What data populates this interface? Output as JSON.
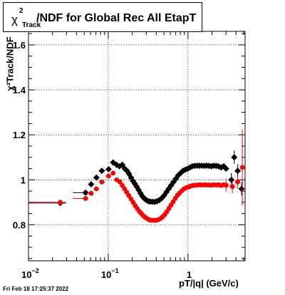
{
  "chart_data": {
    "type": "scatter",
    "title": "/NDF for Global Rec All EtapT",
    "title_symbol": "χ",
    "title_sup": "2",
    "title_sub": "Track",
    "xlabel": "pT/|q| (GeV/c)",
    "ylabel": "χ²Track/NDF",
    "x_scale": "log",
    "xlim": [
      0.01,
      5.2
    ],
    "ylim": [
      0.64,
      1.66
    ],
    "grid": true,
    "x_ticks": [
      {
        "value": 0.01,
        "base": "10",
        "exp": "−2"
      },
      {
        "value": 0.1,
        "base": "10",
        "exp": "−1"
      },
      {
        "value": 1,
        "base": "1",
        "exp": ""
      }
    ],
    "y_ticks": [
      {
        "value": 0.8,
        "label": "0.8"
      },
      {
        "value": 1.0,
        "label": "1"
      },
      {
        "value": 1.2,
        "label": "1.2"
      },
      {
        "value": 1.4,
        "label": "1.4"
      },
      {
        "value": 1.6,
        "label": "1.6"
      }
    ],
    "colors": {
      "black_series": "#000000",
      "red_series": "#ff0000"
    },
    "series": [
      {
        "color": "#000000",
        "marker": "diamond",
        "points": [
          [
            0.025,
            0.897
          ],
          [
            0.052,
            0.943
          ],
          [
            0.061,
            0.98
          ],
          [
            0.071,
            1.01
          ],
          [
            0.083,
            1.04
          ],
          [
            0.101,
            1.047
          ],
          [
            0.115,
            1.077
          ],
          [
            0.127,
            1.067
          ],
          [
            0.138,
            1.06
          ],
          [
            0.15,
            1.067
          ],
          [
            0.161,
            1.05
          ],
          [
            0.172,
            1.04
          ],
          [
            0.182,
            1.027
          ],
          [
            0.193,
            1.01
          ],
          [
            0.204,
            0.995
          ],
          [
            0.215,
            0.983
          ],
          [
            0.227,
            0.97
          ],
          [
            0.24,
            0.955
          ],
          [
            0.254,
            0.94
          ],
          [
            0.268,
            0.927
          ],
          [
            0.283,
            0.917
          ],
          [
            0.3,
            0.91
          ],
          [
            0.318,
            0.905
          ],
          [
            0.338,
            0.903
          ],
          [
            0.36,
            0.902
          ],
          [
            0.384,
            0.902
          ],
          [
            0.41,
            0.905
          ],
          [
            0.438,
            0.91
          ],
          [
            0.468,
            0.918
          ],
          [
            0.5,
            0.93
          ],
          [
            0.535,
            0.945
          ],
          [
            0.573,
            0.96
          ],
          [
            0.614,
            0.975
          ],
          [
            0.658,
            0.99
          ],
          [
            0.705,
            1.005
          ],
          [
            0.755,
            1.02
          ],
          [
            0.808,
            1.03
          ],
          [
            0.865,
            1.04
          ],
          [
            0.926,
            1.045
          ],
          [
            0.99,
            1.05
          ],
          [
            1.06,
            1.055
          ],
          [
            1.13,
            1.06
          ],
          [
            1.21,
            1.062
          ],
          [
            1.3,
            1.063
          ],
          [
            1.39,
            1.063
          ],
          [
            1.49,
            1.063
          ],
          [
            1.6,
            1.062
          ],
          [
            1.71,
            1.063
          ],
          [
            1.83,
            1.062
          ],
          [
            1.96,
            1.06
          ],
          [
            2.1,
            1.063
          ],
          [
            2.25,
            1.062
          ],
          [
            2.41,
            1.06
          ],
          [
            2.6,
            1.055
          ],
          [
            2.8,
            1.06
          ],
          [
            3.0,
            1.05
          ],
          [
            3.5,
            1.0
          ],
          [
            3.8,
            1.1
          ],
          [
            4.2,
            1.04
          ],
          [
            4.7,
            0.96
          ]
        ]
      },
      {
        "color": "#ff0000",
        "marker": "circle",
        "points": [
          [
            0.025,
            0.9
          ],
          [
            0.052,
            0.917
          ],
          [
            0.061,
            0.94
          ],
          [
            0.071,
            0.96
          ],
          [
            0.083,
            0.99
          ],
          [
            0.101,
            1.017
          ],
          [
            0.115,
            1.03
          ],
          [
            0.128,
            1.0
          ],
          [
            0.14,
            0.99
          ],
          [
            0.15,
            0.975
          ],
          [
            0.16,
            0.96
          ],
          [
            0.17,
            0.945
          ],
          [
            0.181,
            0.93
          ],
          [
            0.193,
            0.915
          ],
          [
            0.205,
            0.9
          ],
          [
            0.218,
            0.885
          ],
          [
            0.231,
            0.872
          ],
          [
            0.245,
            0.86
          ],
          [
            0.26,
            0.85
          ],
          [
            0.276,
            0.84
          ],
          [
            0.292,
            0.833
          ],
          [
            0.31,
            0.827
          ],
          [
            0.33,
            0.822
          ],
          [
            0.352,
            0.82
          ],
          [
            0.375,
            0.82
          ],
          [
            0.4,
            0.82
          ],
          [
            0.425,
            0.823
          ],
          [
            0.452,
            0.828
          ],
          [
            0.48,
            0.835
          ],
          [
            0.51,
            0.845
          ],
          [
            0.542,
            0.858
          ],
          [
            0.577,
            0.873
          ],
          [
            0.614,
            0.888
          ],
          [
            0.653,
            0.903
          ],
          [
            0.695,
            0.918
          ],
          [
            0.74,
            0.932
          ],
          [
            0.788,
            0.942
          ],
          [
            0.84,
            0.952
          ],
          [
            0.895,
            0.96
          ],
          [
            0.953,
            0.965
          ],
          [
            1.015,
            0.968
          ],
          [
            1.08,
            0.972
          ],
          [
            1.15,
            0.975
          ],
          [
            1.23,
            0.976
          ],
          [
            1.31,
            0.977
          ],
          [
            1.4,
            0.978
          ],
          [
            1.5,
            0.977
          ],
          [
            1.6,
            0.978
          ],
          [
            1.71,
            0.977
          ],
          [
            1.83,
            0.977
          ],
          [
            1.96,
            0.976
          ],
          [
            2.1,
            0.978
          ],
          [
            2.25,
            0.977
          ],
          [
            2.41,
            0.978
          ],
          [
            2.6,
            0.975
          ],
          [
            2.8,
            0.978
          ],
          [
            3.0,
            0.976
          ],
          [
            3.6,
            0.97
          ],
          [
            4.2,
            0.99
          ],
          [
            4.8,
            1.055
          ]
        ]
      }
    ]
  },
  "timestamp": "Fri Feb 18 17:25:37 2022"
}
